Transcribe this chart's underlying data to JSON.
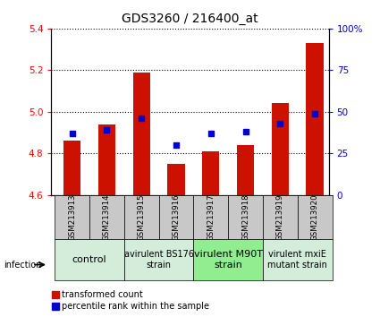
{
  "title": "GDS3260 / 216400_at",
  "samples": [
    "GSM213913",
    "GSM213914",
    "GSM213915",
    "GSM213916",
    "GSM213917",
    "GSM213918",
    "GSM213919",
    "GSM213920"
  ],
  "transformed_counts": [
    4.86,
    4.94,
    5.19,
    4.75,
    4.81,
    4.84,
    5.04,
    5.33
  ],
  "percentile_ranks": [
    37,
    39,
    46,
    30,
    37,
    38,
    43,
    49
  ],
  "ylim_left": [
    4.6,
    5.4
  ],
  "ylim_right": [
    0,
    100
  ],
  "yticks_left": [
    4.6,
    4.8,
    5.0,
    5.2,
    5.4
  ],
  "yticks_right": [
    0,
    25,
    50,
    75,
    100
  ],
  "bar_color": "#cc1100",
  "dot_color": "#0000cc",
  "bar_width": 0.5,
  "group_labels": [
    "control",
    "avirulent BS176\nstrain",
    "virulent M90T\nstrain",
    "virulent mxiE\nmutant strain"
  ],
  "group_ranges": [
    [
      0,
      1
    ],
    [
      2,
      3
    ],
    [
      4,
      5
    ],
    [
      6,
      7
    ]
  ],
  "group_colors": [
    "#d4edda",
    "#d4edda",
    "#90ee90",
    "#d4edda"
  ],
  "group_fontsizes": [
    8,
    7,
    8,
    7
  ],
  "infection_label": "infection",
  "legend_bar_label": "transformed count",
  "legend_dot_label": "percentile rank within the sample",
  "sample_bg_color": "#c8c8c8",
  "xlim": [
    -0.6,
    7.4
  ]
}
